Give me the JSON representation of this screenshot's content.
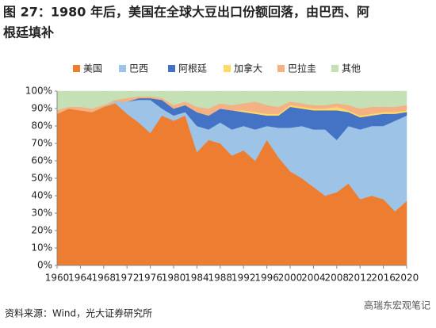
{
  "chart_data": {
    "type": "stacked_area",
    "title": "图 27：1980 年后，美国在全球大豆出口份额回落，由巴西、阿根廷填补",
    "title_lines": [
      "图 27：1980 年后，美国在全球大豆出口份额回落，由巴西、阿",
      "根廷填补"
    ],
    "source": "资料来源：Wind，光大证券研究所",
    "watermark": "高瑞东宏观笔记",
    "x": [
      1960,
      1962,
      1964,
      1966,
      1968,
      1970,
      1972,
      1974,
      1976,
      1978,
      1980,
      1982,
      1984,
      1986,
      1988,
      1990,
      1992,
      1994,
      1996,
      1998,
      2000,
      2002,
      2004,
      2006,
      2008,
      2010,
      2012,
      2014,
      2016,
      2018,
      2020
    ],
    "series": [
      {
        "name": "美国",
        "color": "#ED7D31",
        "values": [
          87,
          90,
          89,
          88,
          91,
          93,
          87,
          82,
          76,
          86,
          83,
          86,
          65,
          72,
          70,
          63,
          66,
          60,
          72,
          62,
          54,
          50,
          45,
          40,
          42,
          47,
          38,
          40,
          38,
          31,
          37
        ]
      },
      {
        "name": "巴西",
        "color": "#9DC3E6",
        "values": [
          0,
          0,
          0,
          0,
          0,
          1,
          7,
          13,
          19,
          4,
          3,
          2,
          15,
          6,
          12,
          15,
          14,
          18,
          8,
          17,
          25,
          30,
          33,
          38,
          30,
          33,
          40,
          40,
          42,
          52,
          49
        ]
      },
      {
        "name": "阿根廷",
        "color": "#4472C4",
        "values": [
          0,
          0,
          0,
          0,
          0,
          0,
          0,
          1,
          1,
          5,
          4,
          4,
          8,
          8,
          8,
          11,
          8,
          9,
          6,
          7,
          12,
          10,
          11,
          11,
          17,
          8,
          7,
          6,
          7,
          4,
          2
        ]
      },
      {
        "name": "加拿大",
        "color": "#FFD966",
        "values": [
          0,
          0,
          0,
          0,
          0,
          0,
          0,
          0,
          0,
          0,
          0,
          0,
          0,
          0,
          0,
          0,
          1,
          1,
          1,
          1,
          1,
          1,
          1,
          1,
          2,
          1,
          1,
          1,
          1,
          1,
          1
        ]
      },
      {
        "name": "巴拉圭",
        "color": "#F4B183",
        "values": [
          2,
          1,
          2,
          2,
          1,
          1,
          2,
          1,
          1,
          1,
          2,
          2,
          3,
          4,
          3,
          3,
          4,
          6,
          5,
          4,
          2,
          2,
          2,
          2,
          2,
          3,
          4,
          4,
          3,
          3,
          3
        ]
      },
      {
        "name": "其他",
        "color": "#C5E0B4",
        "values": [
          11,
          9,
          9,
          10,
          8,
          5,
          4,
          3,
          3,
          4,
          8,
          6,
          9,
          10,
          7,
          8,
          7,
          6,
          8,
          9,
          6,
          7,
          8,
          8,
          7,
          8,
          10,
          9,
          9,
          9,
          8
        ]
      }
    ],
    "xlim": [
      1960,
      2020
    ],
    "xticks": [
      1960,
      1964,
      1968,
      1972,
      1976,
      1980,
      1984,
      1988,
      1992,
      1996,
      2000,
      2004,
      2008,
      2012,
      2016,
      2020
    ],
    "ylim": [
      0,
      100
    ],
    "yticks": [
      {
        "value": 0,
        "label": "0%"
      },
      {
        "value": 10,
        "label": "10%"
      },
      {
        "value": 20,
        "label": "20%"
      },
      {
        "value": 30,
        "label": "30%"
      },
      {
        "value": 40,
        "label": "40%"
      },
      {
        "value": 50,
        "label": "50%"
      },
      {
        "value": 60,
        "label": "60%"
      },
      {
        "value": 70,
        "label": "70%"
      },
      {
        "value": 80,
        "label": "80%"
      },
      {
        "value": 90,
        "label": "90%"
      },
      {
        "value": 100,
        "label": "100%"
      }
    ]
  }
}
